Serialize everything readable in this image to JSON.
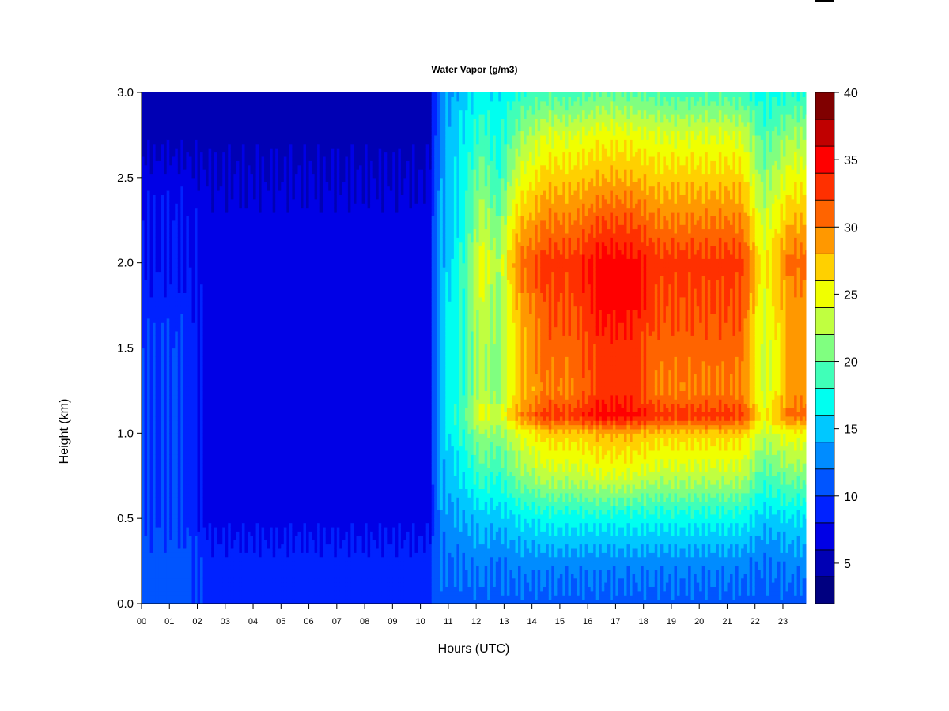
{
  "chart_data": {
    "type": "heatmap",
    "title": "Water Vapor (g/m3)",
    "xlabel": "Hours (UTC)",
    "ylabel": "Height (km)",
    "xlim": [
      0,
      23.82
    ],
    "ylim": [
      0,
      3.0
    ],
    "xticks": [
      "00",
      "01",
      "02",
      "03",
      "04",
      "05",
      "06",
      "07",
      "08",
      "09",
      "10",
      "11",
      "12",
      "13",
      "14",
      "15",
      "16",
      "17",
      "18",
      "19",
      "20",
      "21",
      "22",
      "23"
    ],
    "yticks": [
      "0.0",
      "0.5",
      "1.0",
      "1.5",
      "2.0",
      "2.5",
      "3.0"
    ],
    "colorbar": {
      "range": [
        2,
        40
      ],
      "step": 2,
      "tick_labels": [
        "5",
        "10",
        "15",
        "20",
        "25",
        "30",
        "35",
        "40"
      ],
      "colors": [
        "#000080",
        "#0000B4",
        "#0000E6",
        "#0022FF",
        "#0055FF",
        "#008CFF",
        "#00C8FF",
        "#00FFF0",
        "#40FFB8",
        "#80FF80",
        "#C0FF40",
        "#F0FF00",
        "#FFD000",
        "#FF9800",
        "#FF6400",
        "#FF3000",
        "#FF0000",
        "#C00000",
        "#800000"
      ]
    },
    "heights": [
      0,
      0.25,
      0.5,
      0.75,
      1.0,
      1.1,
      1.25,
      1.5,
      1.75,
      2.0,
      2.25,
      2.5,
      2.75,
      3.0
    ],
    "x": [
      0,
      0.5,
      1.5,
      2.5,
      3.5,
      4.5,
      5.5,
      6.5,
      7.5,
      8.5,
      9.5,
      10.3,
      10.7,
      11.5,
      12.2,
      12.8,
      13.5,
      14.5,
      15.5,
      16.5,
      17.5,
      18.5,
      19.5,
      20.5,
      21.5,
      22.3,
      23.3,
      23.82
    ],
    "z": [
      [
        11,
        11,
        10,
        10,
        10,
        10,
        10,
        10,
        9,
        8,
        8,
        7,
        5,
        5
      ],
      [
        11,
        11,
        10,
        10,
        10,
        10,
        10,
        10,
        9,
        8,
        8,
        7,
        5,
        5
      ],
      [
        11,
        11,
        10,
        10,
        10,
        10,
        10,
        10,
        9,
        8,
        8,
        7,
        5,
        5
      ],
      [
        9,
        9,
        7,
        7,
        7,
        7,
        7,
        7,
        7,
        7,
        7,
        6,
        5,
        5
      ],
      [
        9,
        9,
        7,
        7,
        7,
        7,
        7,
        7,
        7,
        7,
        7,
        6,
        5,
        5
      ],
      [
        9,
        9,
        7,
        7,
        7,
        7,
        7,
        7,
        7,
        7,
        7,
        6,
        5,
        5
      ],
      [
        9,
        9,
        7,
        7,
        7,
        7,
        7,
        7,
        7,
        7,
        7,
        6,
        5,
        5
      ],
      [
        9,
        9,
        7,
        7,
        7,
        7,
        7,
        7,
        7,
        7,
        7,
        6,
        5,
        5
      ],
      [
        9,
        9,
        7,
        7,
        7,
        7,
        7,
        7,
        7,
        7,
        7,
        6,
        5,
        5
      ],
      [
        9,
        9,
        7,
        7,
        7,
        7,
        7,
        7,
        7,
        7,
        7,
        6,
        5,
        5
      ],
      [
        9,
        9,
        7,
        7,
        7,
        7,
        7,
        7,
        7,
        7,
        7,
        6,
        5,
        5
      ],
      [
        9,
        9,
        7,
        7,
        7,
        7,
        7,
        7,
        7,
        7,
        7,
        6,
        5,
        5
      ],
      [
        11,
        12,
        13,
        14,
        15,
        15,
        15,
        15,
        15,
        14,
        14,
        13,
        13,
        13
      ],
      [
        11,
        12,
        14,
        16,
        18,
        19,
        18,
        18,
        18,
        18,
        17,
        17,
        16,
        15
      ],
      [
        11,
        13,
        15,
        19,
        22,
        25,
        23,
        23,
        24,
        25,
        23,
        21,
        19,
        17
      ],
      [
        11,
        12,
        15,
        18,
        21,
        23,
        21,
        21,
        21,
        22,
        20,
        18,
        17,
        16
      ],
      [
        11,
        13,
        16,
        21,
        24,
        29,
        27,
        27,
        28,
        30,
        27,
        24,
        21,
        18
      ],
      [
        11,
        13,
        17,
        23,
        27,
        33,
        30,
        31,
        32,
        33,
        30,
        27,
        24,
        19
      ],
      [
        11,
        13,
        17,
        23,
        27,
        33,
        30,
        31,
        32,
        33,
        30,
        27,
        24,
        19
      ],
      [
        11,
        13,
        17,
        24,
        28,
        35,
        33,
        33,
        35,
        35,
        32,
        28,
        25,
        20
      ],
      [
        11,
        13,
        17,
        24,
        28,
        35,
        33,
        33,
        35,
        35,
        32,
        28,
        25,
        20
      ],
      [
        11,
        13,
        17,
        23,
        27,
        33,
        30,
        31,
        32,
        33,
        30,
        27,
        24,
        19
      ],
      [
        11,
        13,
        17,
        23,
        27,
        33,
        30,
        31,
        32,
        33,
        30,
        27,
        24,
        19
      ],
      [
        11,
        13,
        17,
        23,
        27,
        33,
        30,
        31,
        32,
        33,
        30,
        27,
        24,
        19
      ],
      [
        11,
        13,
        17,
        23,
        27,
        33,
        30,
        31,
        32,
        33,
        30,
        27,
        24,
        19
      ],
      [
        11,
        12,
        15,
        19,
        23,
        25,
        23,
        23,
        24,
        25,
        23,
        21,
        19,
        17
      ],
      [
        11,
        13,
        16,
        21,
        25,
        31,
        29,
        29,
        29,
        31,
        28,
        25,
        22,
        18
      ],
      [
        11,
        13,
        16,
        21,
        25,
        31,
        29,
        29,
        29,
        31,
        28,
        25,
        22,
        18
      ]
    ]
  }
}
